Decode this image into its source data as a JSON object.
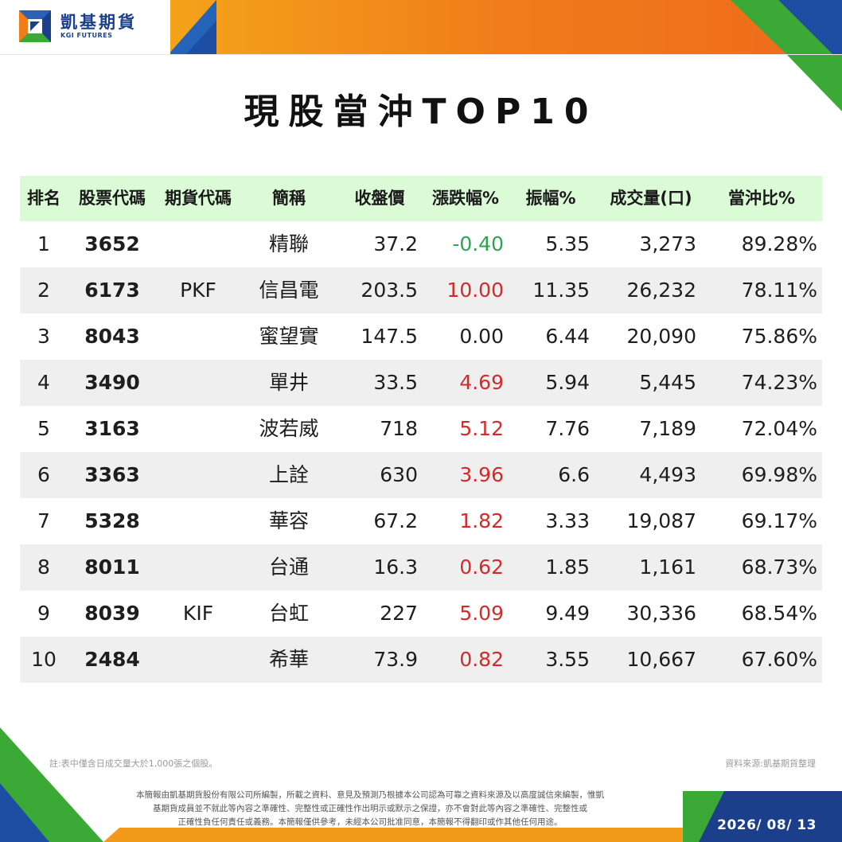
{
  "brand": {
    "name_cn": "凱基期貨",
    "name_en": "KGI FUTURES",
    "logo_icon": "kgi-logo-icon",
    "colors": {
      "blue": "#1c3f8c",
      "orange": "#f07c1a",
      "green": "#3aa935",
      "header_green": "#dbfbd7"
    }
  },
  "title": "現股當沖TOP10",
  "table": {
    "headers": {
      "rank": "排名",
      "stock_code": "股票代碼",
      "futures_code": "期貨代碼",
      "name": "簡稱",
      "close": "收盤價",
      "change_pct": "漲跌幅%",
      "amplitude": "振幅%",
      "volume": "成交量(口)",
      "daytrade_ratio": "當沖比%"
    },
    "rows": [
      {
        "rank": "1",
        "stock_code": "3652",
        "futures_code": "",
        "name": "精聯",
        "close": "37.2",
        "change_pct": "-0.40",
        "change_dir": "down",
        "amplitude": "5.35",
        "volume": "3,273",
        "daytrade_ratio": "89.28%"
      },
      {
        "rank": "2",
        "stock_code": "6173",
        "futures_code": "PKF",
        "name": "信昌電",
        "close": "203.5",
        "change_pct": "10.00",
        "change_dir": "up",
        "amplitude": "11.35",
        "volume": "26,232",
        "daytrade_ratio": "78.11%"
      },
      {
        "rank": "3",
        "stock_code": "8043",
        "futures_code": "",
        "name": "蜜望實",
        "close": "147.5",
        "change_pct": "0.00",
        "change_dir": "flat",
        "amplitude": "6.44",
        "volume": "20,090",
        "daytrade_ratio": "75.86%"
      },
      {
        "rank": "4",
        "stock_code": "3490",
        "futures_code": "",
        "name": "單井",
        "close": "33.5",
        "change_pct": "4.69",
        "change_dir": "up",
        "amplitude": "5.94",
        "volume": "5,445",
        "daytrade_ratio": "74.23%"
      },
      {
        "rank": "5",
        "stock_code": "3163",
        "futures_code": "",
        "name": "波若威",
        "close": "718",
        "change_pct": "5.12",
        "change_dir": "up",
        "amplitude": "7.76",
        "volume": "7,189",
        "daytrade_ratio": "72.04%"
      },
      {
        "rank": "6",
        "stock_code": "3363",
        "futures_code": "",
        "name": "上詮",
        "close": "630",
        "change_pct": "3.96",
        "change_dir": "up",
        "amplitude": "6.6",
        "volume": "4,493",
        "daytrade_ratio": "69.98%"
      },
      {
        "rank": "7",
        "stock_code": "5328",
        "futures_code": "",
        "name": "華容",
        "close": "67.2",
        "change_pct": "1.82",
        "change_dir": "up",
        "amplitude": "3.33",
        "volume": "19,087",
        "daytrade_ratio": "69.17%"
      },
      {
        "rank": "8",
        "stock_code": "8011",
        "futures_code": "",
        "name": "台通",
        "close": "16.3",
        "change_pct": "0.62",
        "change_dir": "up",
        "amplitude": "1.85",
        "volume": "1,161",
        "daytrade_ratio": "68.73%"
      },
      {
        "rank": "9",
        "stock_code": "8039",
        "futures_code": "KIF",
        "name": "台虹",
        "close": "227",
        "change_pct": "5.09",
        "change_dir": "up",
        "amplitude": "9.49",
        "volume": "30,336",
        "daytrade_ratio": "68.54%"
      },
      {
        "rank": "10",
        "stock_code": "2484",
        "futures_code": "",
        "name": "希華",
        "close": "73.9",
        "change_pct": "0.82",
        "change_dir": "up",
        "amplitude": "3.55",
        "volume": "10,667",
        "daytrade_ratio": "67.60%"
      }
    ],
    "change_colors": {
      "up": "#d42a2a",
      "down": "#2ea44f",
      "flat": "#1e1e1e"
    }
  },
  "notes": {
    "left": "註:表中僅含日成交量大於1,000張之個股。",
    "right": "資料來源:凱基期貨整理"
  },
  "disclaimer": [
    "本簡報由凱基期貨股份有限公司所編製，所載之資料、意見及預測乃根據本公司認為可靠之資料來源及以高度誠信來編製，惟凱",
    "基期貨成員並不就此等內容之準確性、完整性或正確性作出明示或默示之保證，亦不會對此等內容之準確性、完整性或",
    "正確性負任何責任或義務。本簡報僅供參考，未經本公司批准同意，本簡報不得翻印或作其他任何用途。"
  ],
  "date": "2026/ 08/ 13"
}
